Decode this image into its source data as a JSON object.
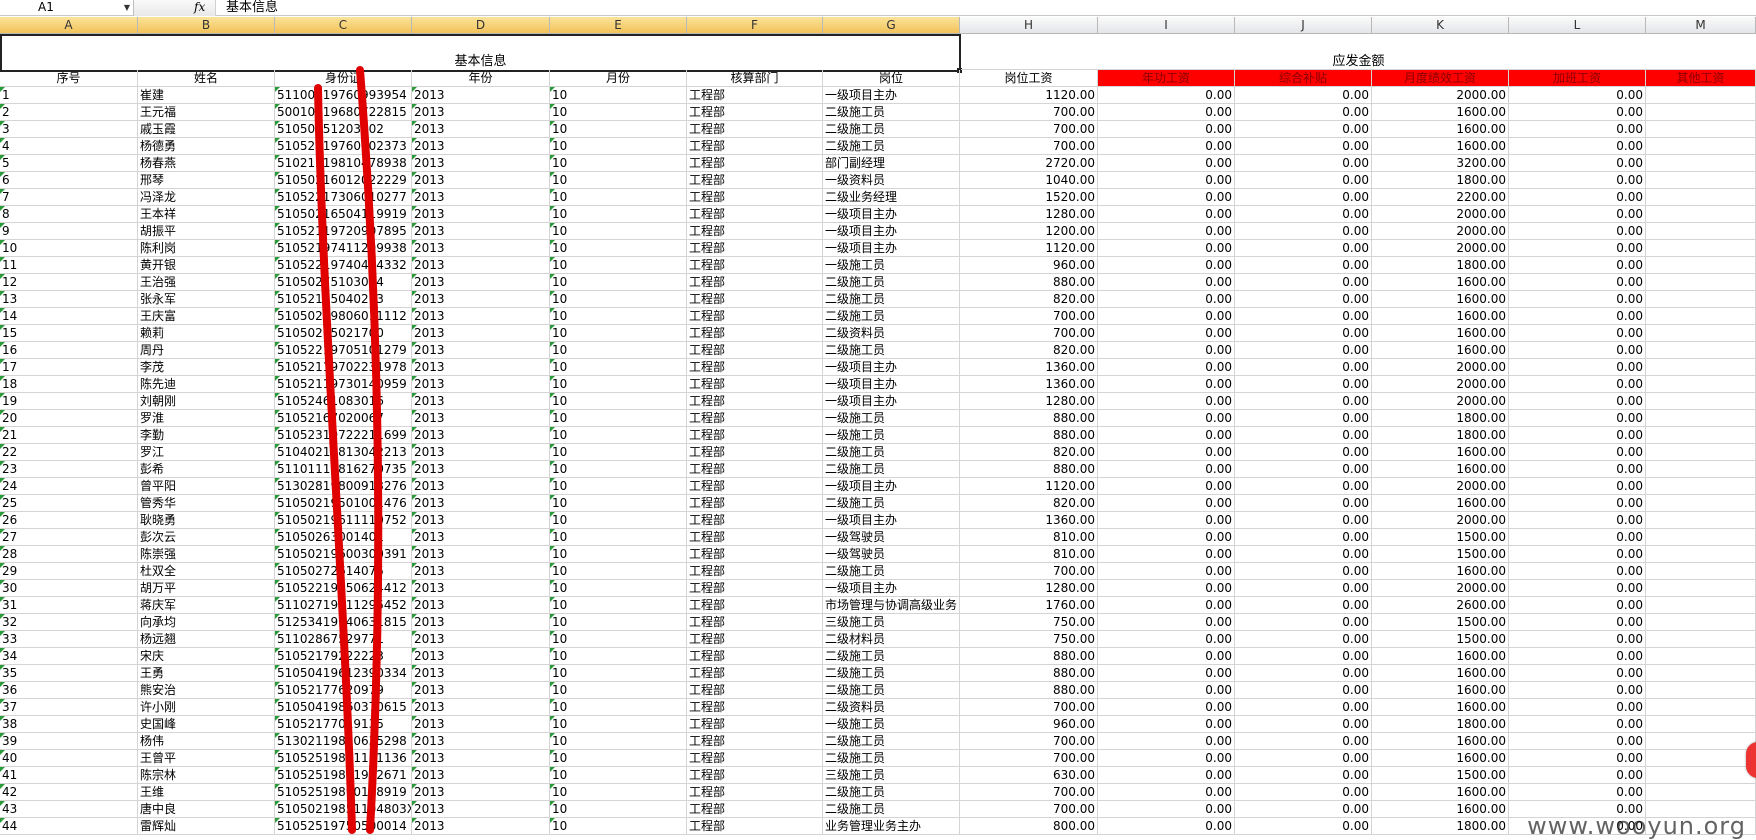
{
  "formula_bar": {
    "name_box": "A1",
    "fx": "fx",
    "value": "基本信息"
  },
  "columns": [
    "A",
    "B",
    "C",
    "D",
    "E",
    "F",
    "G",
    "H",
    "I",
    "J",
    "K",
    "L",
    "M"
  ],
  "title_left": "基本信息",
  "title_right": "应发金额",
  "headers": [
    "序号",
    "姓名",
    "身份证",
    "年份",
    "月份",
    "核算部门",
    "岗位",
    "岗位工资",
    "年功工资",
    "综合补贴",
    "月度绩效工资",
    "加班工资",
    "其他工资"
  ],
  "rows": [
    [
      "1",
      "崔建",
      "51100219760993954",
      "2013",
      "10",
      "工程部",
      "一级项目主办",
      "1120.00",
      "0.00",
      "0.00",
      "2000.00",
      "0.00",
      ""
    ],
    [
      "2",
      "王元福",
      "50010719680722815",
      "2013",
      "10",
      "工程部",
      "二级施工员",
      "700.00",
      "0.00",
      "0.00",
      "1600.00",
      "0.00",
      ""
    ],
    [
      "3",
      "戚玉霞",
      "51050251203002",
      "2013",
      "10",
      "工程部",
      "二级施工员",
      "700.00",
      "0.00",
      "0.00",
      "1600.00",
      "0.00",
      ""
    ],
    [
      "4",
      "杨德勇",
      "51052519760502373",
      "2013",
      "10",
      "工程部",
      "二级施工员",
      "700.00",
      "0.00",
      "0.00",
      "1600.00",
      "0.00",
      ""
    ],
    [
      "5",
      "杨春燕",
      "51021319810478938",
      "2013",
      "10",
      "工程部",
      "部门副经理",
      "2720.00",
      "0.00",
      "0.00",
      "3200.00",
      "0.00",
      ""
    ],
    [
      "6",
      "邢琴",
      "51050216012022229",
      "2013",
      "10",
      "工程部",
      "一级资料员",
      "1040.00",
      "0.00",
      "0.00",
      "1800.00",
      "0.00",
      ""
    ],
    [
      "7",
      "冯泽龙",
      "51052217306010277",
      "2013",
      "10",
      "工程部",
      "二级业务经理",
      "1520.00",
      "0.00",
      "0.00",
      "2200.00",
      "0.00",
      ""
    ],
    [
      "8",
      "王本祥",
      "51050216504119919",
      "2013",
      "10",
      "工程部",
      "一级项目主办",
      "1280.00",
      "0.00",
      "0.00",
      "2000.00",
      "0.00",
      ""
    ],
    [
      "9",
      "胡振平",
      "51052119720907895",
      "2013",
      "10",
      "工程部",
      "一级项目主办",
      "1200.00",
      "0.00",
      "0.00",
      "2000.00",
      "0.00",
      ""
    ],
    [
      "10",
      "陈利岗",
      "51052197411299938",
      "2013",
      "10",
      "工程部",
      "一级项目主办",
      "1120.00",
      "0.00",
      "0.00",
      "2000.00",
      "0.00",
      ""
    ],
    [
      "11",
      "黄开银",
      "51052219740404332",
      "2013",
      "10",
      "工程部",
      "一级施工员",
      "960.00",
      "0.00",
      "0.00",
      "1800.00",
      "0.00",
      ""
    ],
    [
      "12",
      "王治强",
      "51050275103044",
      "2013",
      "10",
      "工程部",
      "二级施工员",
      "880.00",
      "0.00",
      "0.00",
      "1600.00",
      "0.00",
      ""
    ],
    [
      "13",
      "张永军",
      "51052175040263",
      "2013",
      "10",
      "工程部",
      "二级施工员",
      "820.00",
      "0.00",
      "0.00",
      "1600.00",
      "0.00",
      ""
    ],
    [
      "14",
      "王庆富",
      "51050219806011112",
      "2013",
      "10",
      "工程部",
      "二级施工员",
      "700.00",
      "0.00",
      "0.00",
      "1600.00",
      "0.00",
      ""
    ],
    [
      "15",
      "赖莉",
      "51050275021700",
      "2013",
      "10",
      "工程部",
      "二级资料员",
      "700.00",
      "0.00",
      "0.00",
      "1600.00",
      "0.00",
      ""
    ],
    [
      "16",
      "周丹",
      "51052219705101279",
      "2013",
      "10",
      "工程部",
      "二级施工员",
      "820.00",
      "0.00",
      "0.00",
      "1600.00",
      "0.00",
      ""
    ],
    [
      "17",
      "李茂",
      "51052119702231978",
      "2013",
      "10",
      "工程部",
      "一级项目主办",
      "1360.00",
      "0.00",
      "0.00",
      "2000.00",
      "0.00",
      ""
    ],
    [
      "18",
      "陈先迪",
      "51052119730140959",
      "2013",
      "10",
      "工程部",
      "一级项目主办",
      "1360.00",
      "0.00",
      "0.00",
      "2000.00",
      "0.00",
      ""
    ],
    [
      "19",
      "刘朝刚",
      "51052461083016",
      "2013",
      "10",
      "工程部",
      "一级项目主办",
      "1280.00",
      "0.00",
      "0.00",
      "2000.00",
      "0.00",
      ""
    ],
    [
      "20",
      "罗淮",
      "51052167020067",
      "2013",
      "10",
      "工程部",
      "一级施工员",
      "880.00",
      "0.00",
      "0.00",
      "1800.00",
      "0.00",
      ""
    ],
    [
      "21",
      "李勤",
      "51052319722211699",
      "2013",
      "10",
      "工程部",
      "一级施工员",
      "880.00",
      "0.00",
      "0.00",
      "1800.00",
      "0.00",
      ""
    ],
    [
      "22",
      "罗江",
      "51040219813042213",
      "2013",
      "10",
      "工程部",
      "二级施工员",
      "820.00",
      "0.00",
      "0.00",
      "1600.00",
      "0.00",
      ""
    ],
    [
      "23",
      "彭希",
      "51101119816270735",
      "2013",
      "10",
      "工程部",
      "二级施工员",
      "880.00",
      "0.00",
      "0.00",
      "1600.00",
      "0.00",
      ""
    ],
    [
      "24",
      "曾平阳",
      "51302819800913276",
      "2013",
      "10",
      "工程部",
      "一级项目主办",
      "1120.00",
      "0.00",
      "0.00",
      "2000.00",
      "0.00",
      ""
    ],
    [
      "25",
      "管秀华",
      "51050219501001476",
      "2013",
      "10",
      "工程部",
      "二级施工员",
      "820.00",
      "0.00",
      "0.00",
      "1600.00",
      "0.00",
      ""
    ],
    [
      "26",
      "耿晓勇",
      "51050219611110752",
      "2013",
      "10",
      "工程部",
      "一级项目主办",
      "1360.00",
      "0.00",
      "0.00",
      "2000.00",
      "0.00",
      ""
    ],
    [
      "27",
      "彭次云",
      "51050263001401",
      "2013",
      "10",
      "工程部",
      "一级驾驶员",
      "810.00",
      "0.00",
      "0.00",
      "1500.00",
      "0.00",
      ""
    ],
    [
      "28",
      "陈崇强",
      "51050219600300391",
      "2013",
      "10",
      "工程部",
      "一级驾驶员",
      "810.00",
      "0.00",
      "0.00",
      "1500.00",
      "0.00",
      ""
    ],
    [
      "29",
      "杜双全",
      "51050272614075",
      "2013",
      "10",
      "工程部",
      "二级施工员",
      "700.00",
      "0.00",
      "0.00",
      "1600.00",
      "0.00",
      ""
    ],
    [
      "30",
      "胡万平",
      "51052219750624412",
      "2013",
      "10",
      "工程部",
      "一级项目主办",
      "1280.00",
      "0.00",
      "0.00",
      "2000.00",
      "0.00",
      ""
    ],
    [
      "31",
      "蒋庆军",
      "51102719811295452",
      "2013",
      "10",
      "工程部",
      "市场管理与协调高级业务",
      "1760.00",
      "0.00",
      "0.00",
      "2600.00",
      "0.00",
      ""
    ],
    [
      "32",
      "向承均",
      "51253419740631815",
      "2013",
      "10",
      "工程部",
      "三级施工员",
      "750.00",
      "0.00",
      "0.00",
      "1500.00",
      "0.00",
      ""
    ],
    [
      "33",
      "杨远翘",
      "51102867529771",
      "2013",
      "10",
      "工程部",
      "二级材料员",
      "750.00",
      "0.00",
      "0.00",
      "1500.00",
      "0.00",
      ""
    ],
    [
      "34",
      "宋庆",
      "51052179222223",
      "2013",
      "10",
      "工程部",
      "二级施工员",
      "880.00",
      "0.00",
      "0.00",
      "1600.00",
      "0.00",
      ""
    ],
    [
      "35",
      "王勇",
      "51050419612390334",
      "2013",
      "10",
      "工程部",
      "二级施工员",
      "880.00",
      "0.00",
      "0.00",
      "1600.00",
      "0.00",
      ""
    ],
    [
      "36",
      "熊安治",
      "51052177620979",
      "2013",
      "10",
      "工程部",
      "二级施工员",
      "880.00",
      "0.00",
      "0.00",
      "1600.00",
      "0.00",
      ""
    ],
    [
      "37",
      "许小刚",
      "51050419860370615",
      "2013",
      "10",
      "工程部",
      "二级资料员",
      "700.00",
      "0.00",
      "0.00",
      "1600.00",
      "0.00",
      ""
    ],
    [
      "38",
      "史国峰",
      "51052177019135",
      "2013",
      "10",
      "工程部",
      "一级施工员",
      "960.00",
      "0.00",
      "0.00",
      "1800.00",
      "0.00",
      ""
    ],
    [
      "39",
      "杨伟",
      "51302119810635298",
      "2013",
      "10",
      "工程部",
      "二级施工员",
      "700.00",
      "0.00",
      "0.00",
      "1600.00",
      "0.00",
      ""
    ],
    [
      "40",
      "王曾平",
      "51052519801161136",
      "2013",
      "10",
      "工程部",
      "二级施工员",
      "700.00",
      "0.00",
      "0.00",
      "1600.00",
      "0.00",
      ""
    ],
    [
      "41",
      "陈宗林",
      "51052519871922671",
      "2013",
      "10",
      "工程部",
      "三级施工员",
      "630.00",
      "0.00",
      "0.00",
      "1500.00",
      "0.00",
      ""
    ],
    [
      "42",
      "王维",
      "51052519890108919",
      "2013",
      "10",
      "工程部",
      "二级施工员",
      "700.00",
      "0.00",
      "0.00",
      "1600.00",
      "0.00",
      ""
    ],
    [
      "43",
      "唐中良",
      "51050219851104803X",
      "2013",
      "10",
      "工程部",
      "二级施工员",
      "700.00",
      "0.00",
      "0.00",
      "1600.00",
      "0.00",
      ""
    ],
    [
      "44",
      "雷辉灿",
      "51052519750500014",
      "2013",
      "10",
      "工程部",
      "业务管理业务主办",
      "800.00",
      "0.00",
      "0.00",
      "1800.00",
      "0.00",
      ""
    ]
  ],
  "watermark": "www.wooyun.org",
  "colors": {
    "header_red": "#ff0000",
    "selected_header": "#f2c35a",
    "redaction": "#e00000"
  }
}
